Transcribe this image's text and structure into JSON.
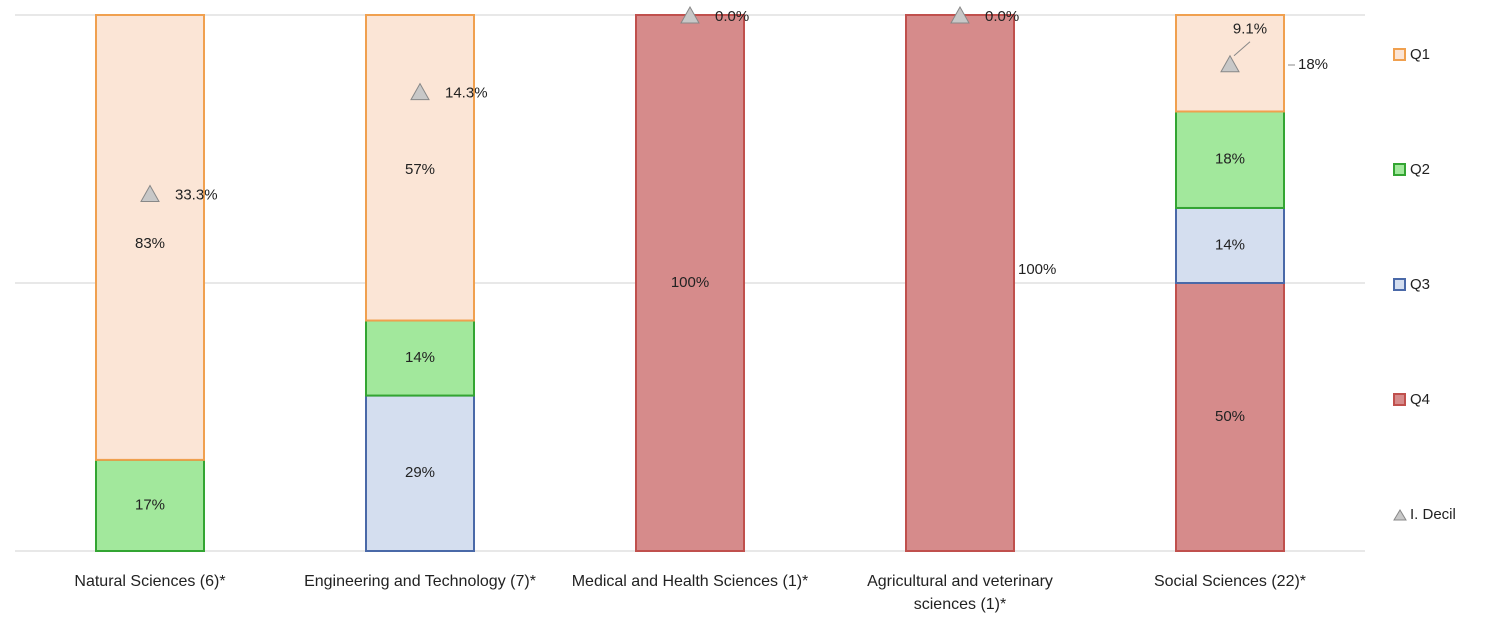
{
  "chart_data": {
    "type": "stacked_bar",
    "categories": [
      "Natural Sciences (6)*",
      "Engineering and Technology (7)*",
      "Medical and Health Sciences (1)*",
      "Agricultural and veterinary sciences (1)*",
      "Social Sciences (22)*"
    ],
    "ylim": [
      0,
      100
    ],
    "yticks": [
      0,
      50,
      100
    ],
    "grid": true,
    "legend": "right",
    "series": [
      {
        "name": "Q4",
        "color": "#d68b8b",
        "stroke": "#c0504d",
        "values": [
          null,
          null,
          100,
          100,
          50
        ],
        "value_labels": [
          null,
          null,
          "100%",
          "100%",
          "50%"
        ]
      },
      {
        "name": "Q3",
        "color": "#d4deef",
        "stroke": "#4a69a8",
        "values": [
          null,
          29,
          null,
          null,
          14
        ],
        "value_labels": [
          null,
          "29%",
          null,
          null,
          "14%"
        ]
      },
      {
        "name": "Q2",
        "color": "#a2e89c",
        "stroke": "#33a532",
        "values": [
          17,
          14,
          null,
          null,
          18
        ],
        "value_labels": [
          "17%",
          "14%",
          null,
          null,
          "18%"
        ]
      },
      {
        "name": "Q1",
        "color": "#fbe5d6",
        "stroke": "#f0a04f",
        "values": [
          83,
          57,
          null,
          null,
          18
        ],
        "value_labels": [
          "83%",
          "57%",
          null,
          null,
          "18%"
        ]
      },
      {
        "name": "I. Decil",
        "type": "marker",
        "axis": "y2",
        "color": "#c8c8c8",
        "values": [
          33.3,
          14.3,
          0.0,
          0.0,
          9.1
        ],
        "value_labels": [
          "33.3%",
          "14.3%",
          "0.0%",
          "0.0%",
          "9.1%"
        ]
      }
    ],
    "y2lim": [
      100,
      0
    ]
  }
}
